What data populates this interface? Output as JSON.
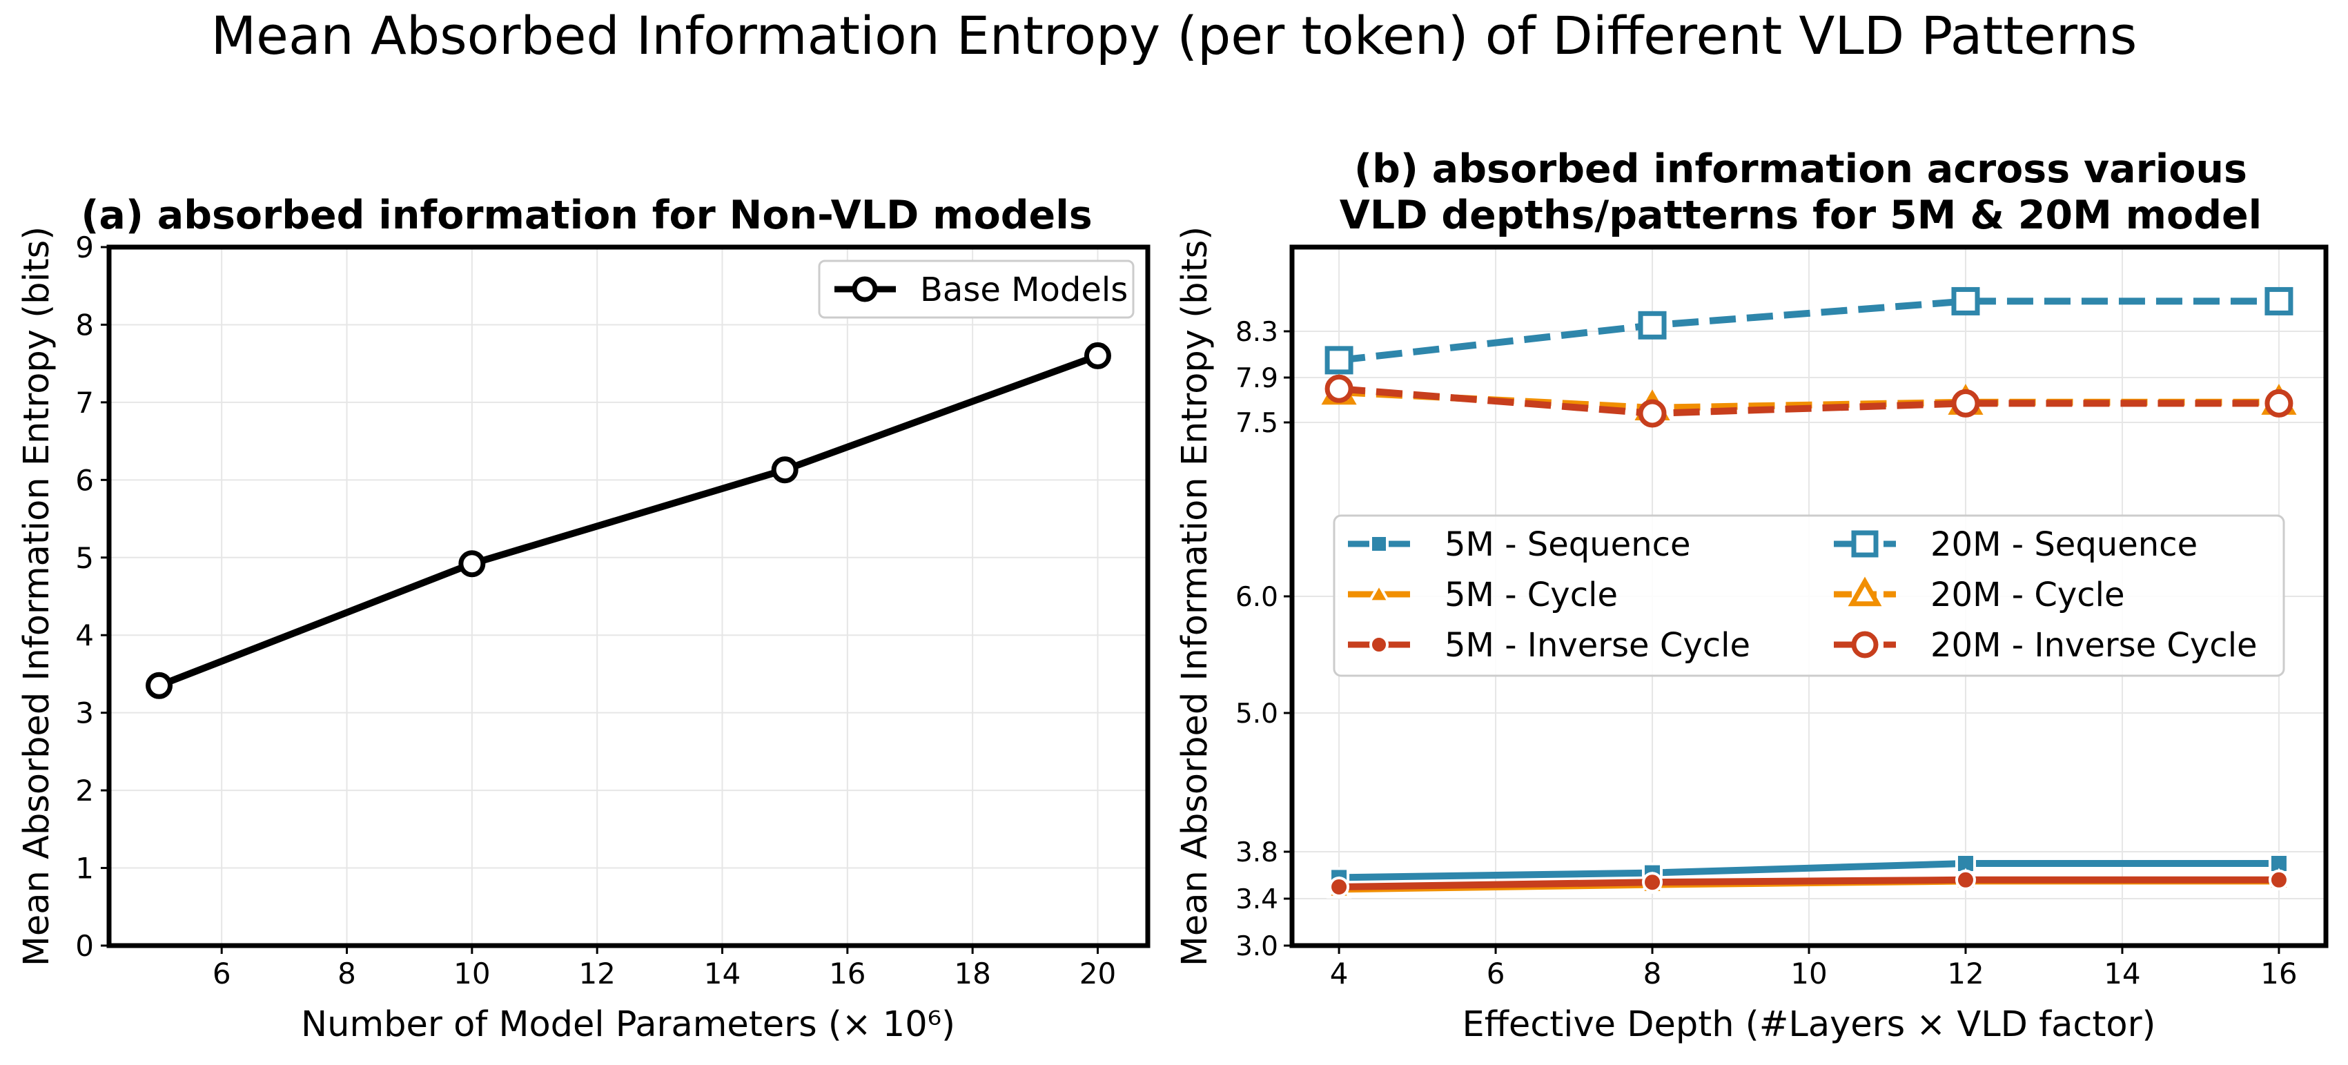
{
  "suptitle": "Mean Absorbed Information Entropy (per token) of Different VLD Patterns",
  "colors": {
    "black": "#000000",
    "sequence": "#2e86ab",
    "cycle": "#f18f01",
    "inverse_cycle": "#c73e1d",
    "grid": "#e6e6e6"
  },
  "chart_data": [
    {
      "type": "line",
      "title": "(a) absorbed information for Non-VLD models",
      "xlabel": "Number of Model Parameters (× 10⁶)",
      "ylabel": "Mean Absorbed Information Entropy (bits)",
      "xlim": [
        4.2,
        20.8
      ],
      "ylim": [
        0,
        9
      ],
      "xticks": [
        6,
        8,
        10,
        12,
        14,
        16,
        18,
        20
      ],
      "xtick_labels": [
        "6",
        "8",
        "10",
        "12",
        "14",
        "16",
        "18",
        "20"
      ],
      "yticks": [
        0,
        1,
        2,
        3,
        4,
        5,
        6,
        7,
        8,
        9
      ],
      "ytick_labels": [
        "0",
        "1",
        "2",
        "3",
        "4",
        "5",
        "6",
        "7",
        "8",
        "9"
      ],
      "grid": true,
      "legend": "top-right",
      "series": [
        {
          "name": "Base Models",
          "marker": "circle-open",
          "dash": "solid",
          "color": "#000000",
          "x": [
            5,
            10,
            15,
            20
          ],
          "values": [
            3.35,
            4.92,
            6.13,
            7.6
          ]
        }
      ]
    },
    {
      "type": "line",
      "title": "(b) absorbed information across various VLD depths/patterns for 5M & 20M model",
      "title_lines": [
        "(b) absorbed information across various",
        "VLD depths/patterns for 5M & 20M model"
      ],
      "xlabel": "Effective Depth (#Layers × VLD factor)",
      "ylabel": "Mean Absorbed Information Entropy (bits)",
      "xlim": [
        3.4,
        16.6
      ],
      "ylim": [
        3.0,
        9.0
      ],
      "yscale": "piecewise",
      "xticks": [
        4,
        6,
        8,
        10,
        12,
        14,
        16
      ],
      "xtick_labels": [
        "4",
        "6",
        "8",
        "10",
        "12",
        "14",
        "16"
      ],
      "yticks": [
        3.0,
        3.4,
        3.8,
        5.0,
        6.0,
        7.5,
        7.9,
        8.3
      ],
      "ytick_labels": [
        "3.0",
        "3.4",
        "3.8",
        "5.0",
        "6.0",
        "7.5",
        "7.9",
        "8.3"
      ],
      "grid": true,
      "legend": "center (two columns)",
      "categories": [
        4,
        8,
        12,
        16
      ],
      "series": [
        {
          "name": "5M - Sequence",
          "marker": "square-filled",
          "dash": "solid",
          "color": "#2e86ab",
          "values": [
            3.58,
            3.62,
            3.7,
            3.7
          ]
        },
        {
          "name": "5M - Cycle",
          "marker": "triangle-filled",
          "dash": "solid",
          "color": "#f18f01",
          "values": [
            3.48,
            3.52,
            3.55,
            3.55
          ]
        },
        {
          "name": "5M - Inverse Cycle",
          "marker": "circle-filled",
          "dash": "solid",
          "color": "#c73e1d",
          "values": [
            3.5,
            3.54,
            3.56,
            3.56
          ]
        },
        {
          "name": "20M - Sequence",
          "marker": "square-open",
          "dash": "dashed",
          "color": "#2e86ab",
          "values": [
            8.05,
            8.35,
            8.55,
            8.55
          ]
        },
        {
          "name": "20M - Cycle",
          "marker": "triangle-open",
          "dash": "dashed",
          "color": "#f18f01",
          "values": [
            7.77,
            7.63,
            7.68,
            7.68
          ]
        },
        {
          "name": "20M - Inverse Cycle",
          "marker": "circle-open",
          "dash": "dashed",
          "color": "#c73e1d",
          "values": [
            7.8,
            7.58,
            7.67,
            7.67
          ]
        }
      ],
      "legend_entries": [
        {
          "label": "5M - Sequence",
          "series": 0
        },
        {
          "label": "20M - Sequence",
          "series": 3
        },
        {
          "label": "5M - Cycle",
          "series": 1
        },
        {
          "label": "20M - Cycle",
          "series": 4
        },
        {
          "label": "5M - Inverse Cycle",
          "series": 2
        },
        {
          "label": "20M - Inverse Cycle",
          "series": 5
        }
      ]
    }
  ]
}
